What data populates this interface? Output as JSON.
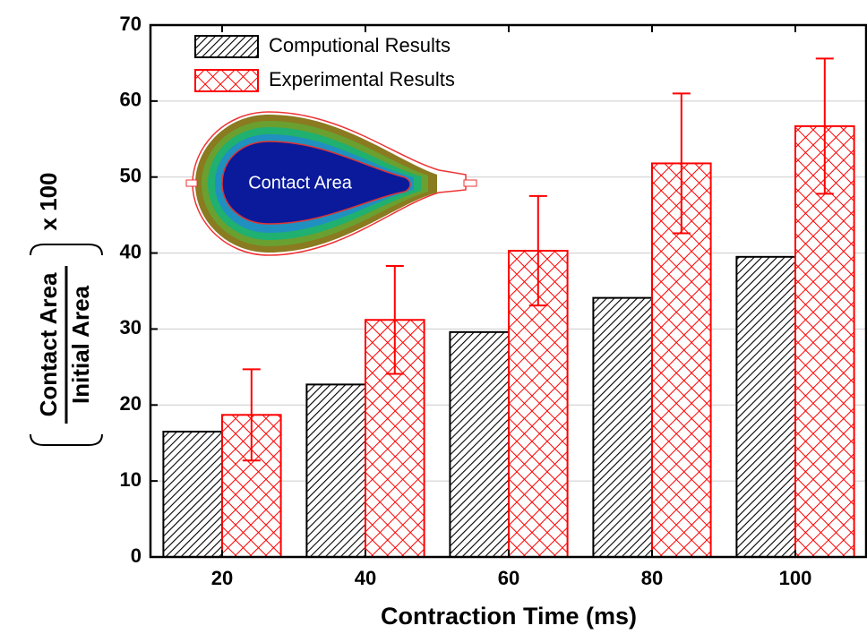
{
  "chart_data": {
    "type": "bar",
    "x_label": "Contraction Time (ms)",
    "y_label": {
      "numerator": "Contact Area",
      "denominator": "Initial Area",
      "multiplier": "x 100"
    },
    "annotation": "Contact Area",
    "categories": [
      "20",
      "40",
      "60",
      "80",
      "100"
    ],
    "series": [
      {
        "name": "Computional Results",
        "color": "#000000",
        "values": [
          16.5,
          22.7,
          29.6,
          34.1,
          39.5
        ]
      },
      {
        "name": "Experimental Results",
        "color": "#ff0000",
        "values": [
          18.7,
          31.2,
          40.3,
          51.8,
          56.7
        ],
        "errors": [
          6.0,
          7.1,
          7.2,
          9.2,
          8.9
        ]
      }
    ],
    "ylim": [
      0,
      70
    ],
    "yticks": [
      0,
      10,
      20,
      30,
      40,
      50,
      60,
      70
    ],
    "grid": true,
    "legend": "upper left"
  }
}
